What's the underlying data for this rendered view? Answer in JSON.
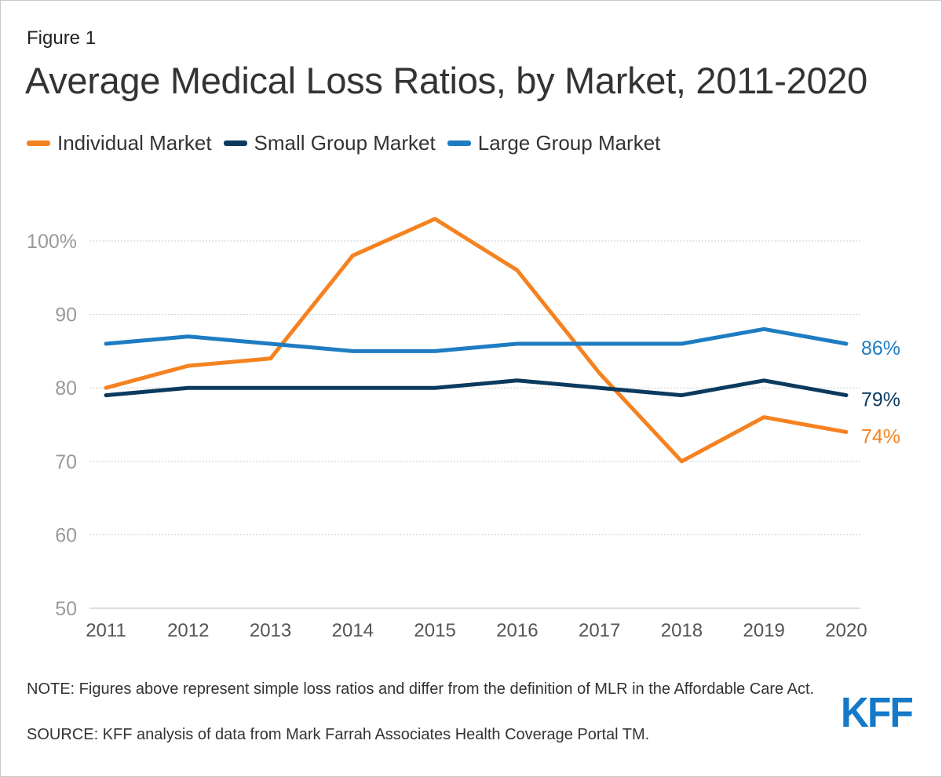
{
  "figure_label": "Figure 1",
  "title": "Average Medical Loss Ratios, by Market, 2011-2020",
  "note": "NOTE: Figures above represent simple loss ratios and differ from the definition of MLR in the Affordable Care Act.",
  "source": "SOURCE: KFF analysis of data from Mark Farrah Associates Health Coverage Portal TM.",
  "logo": "KFF",
  "colors": {
    "individual": "#f58220",
    "small_group": "#0b3a5e",
    "large_group": "#1e7cc2",
    "axis_text": "#999999",
    "grid": "#cccccc",
    "logo": "#1479c8"
  },
  "chart_data": {
    "type": "line",
    "x": [
      "2011",
      "2012",
      "2013",
      "2014",
      "2015",
      "2016",
      "2017",
      "2018",
      "2019",
      "2020"
    ],
    "series": [
      {
        "name": "Individual Market",
        "color": "#f58220",
        "values": [
          80,
          83,
          84,
          98,
          103,
          96,
          82,
          70,
          76,
          74
        ],
        "end_label": "74%"
      },
      {
        "name": "Small Group Market",
        "color": "#0b3a5e",
        "values": [
          79,
          80,
          80,
          80,
          80,
          81,
          80,
          79,
          81,
          79
        ],
        "end_label": "79%"
      },
      {
        "name": "Large Group Market",
        "color": "#1e7cc2",
        "values": [
          86,
          87,
          86,
          85,
          85,
          86,
          86,
          86,
          88,
          86
        ],
        "end_label": "86%"
      }
    ],
    "ylim": [
      50,
      100
    ],
    "yticks": [
      50,
      60,
      70,
      80,
      90,
      100
    ],
    "ytick_labels": [
      "50",
      "60",
      "70",
      "80",
      "90",
      "100%"
    ],
    "grid": true,
    "legend": "top-left"
  }
}
